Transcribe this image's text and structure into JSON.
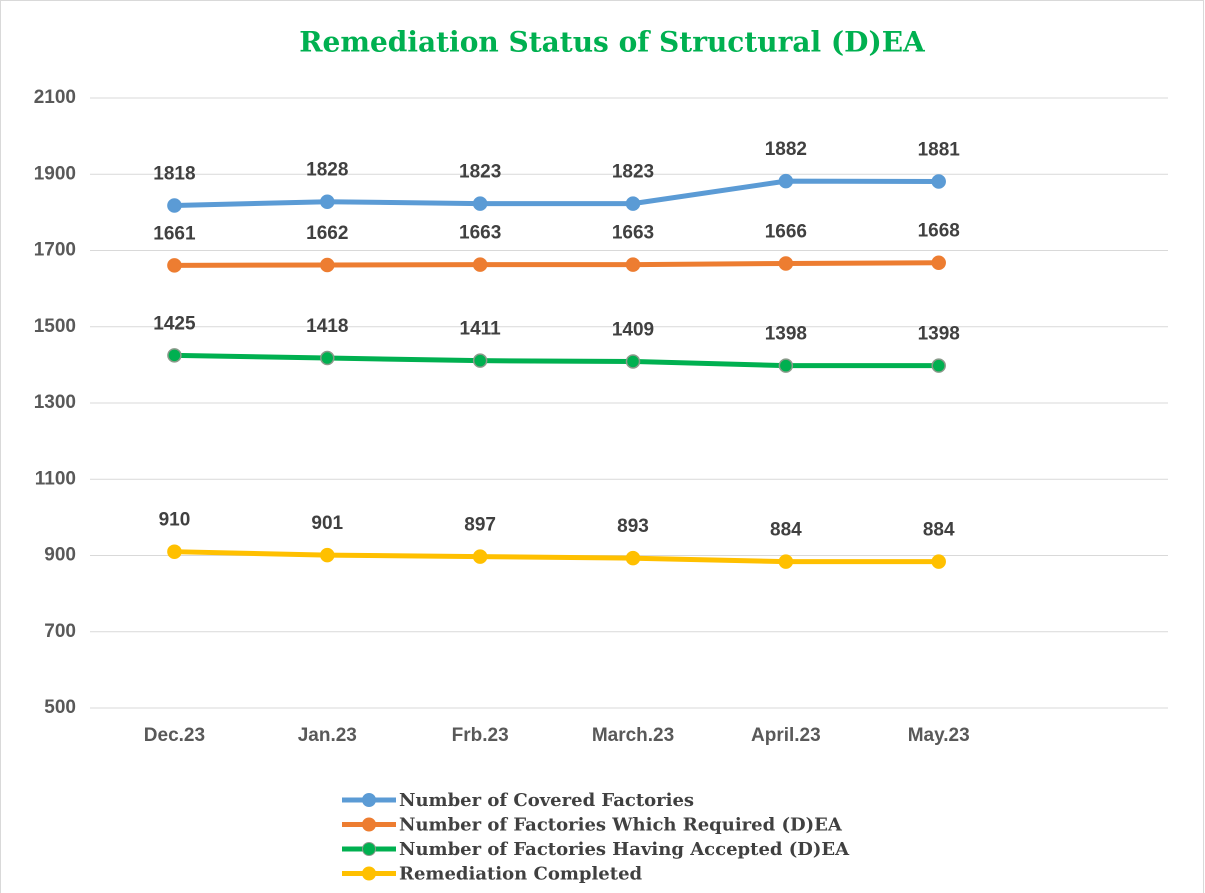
{
  "chart_data": {
    "type": "line",
    "title": "Remediation Status of Structural (D)EA",
    "categories": [
      "Dec.23",
      "Jan.23",
      "Frb.23",
      "March.23",
      "April.23",
      "May.23",
      null
    ],
    "series": [
      {
        "name": "Number of Covered  Factories",
        "color": "#5b9bd5",
        "values": [
          1818,
          1828,
          1823,
          1823,
          1882,
          1881,
          null
        ]
      },
      {
        "name": "Number of Factories Which Required (D)EA",
        "color": "#ed7d31",
        "values": [
          1661,
          1662,
          1663,
          1663,
          1666,
          1668,
          null
        ]
      },
      {
        "name": "Number of Factories Having Accepted (D)EA",
        "color": "#00b050",
        "values": [
          1425,
          1418,
          1411,
          1409,
          1398,
          1398,
          null
        ]
      },
      {
        "name": "Remediation Completed",
        "color": "#ffc000",
        "values": [
          910,
          901,
          897,
          893,
          884,
          884,
          null
        ]
      }
    ],
    "ylim": [
      500,
      2100
    ],
    "yticks": [
      500,
      700,
      900,
      1100,
      1300,
      1500,
      1700,
      1900,
      2100
    ],
    "grid": true,
    "legend": "bottom",
    "title_color": "#00b050"
  }
}
